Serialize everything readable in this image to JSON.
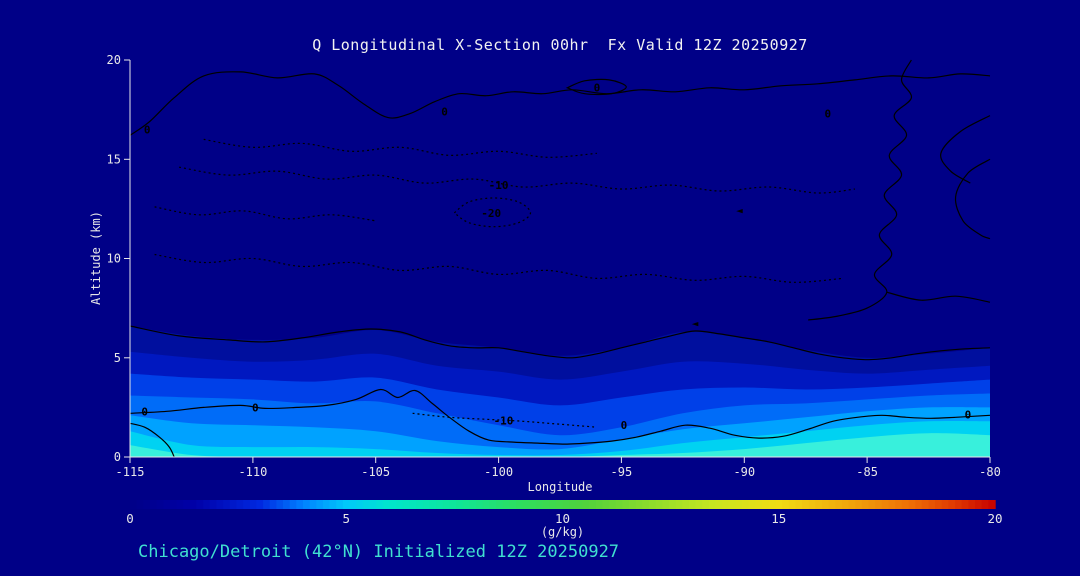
{
  "title": "Q Longitudinal X-Section 00hr  Fx Valid 12Z 20250927",
  "footer": "Chicago/Detroit (42°N) Initialized 12Z 20250927",
  "colors": {
    "background": "#000087",
    "title_text": "#f2f2f2",
    "footer_text": "#40e0d0",
    "axis": "#e8e8e8",
    "contour": "#000000"
  },
  "chart_data": {
    "type": "heatmap",
    "representation": "filled-contour-vertical-cross-section",
    "title": "Q Longitudinal X-Section 00hr  Fx Valid 12Z 20250927",
    "xlabel": "Longitude",
    "ylabel": "Altitude (km)",
    "units_label": "(g/kg)",
    "xlim": [
      -115,
      -80
    ],
    "ylim": [
      0,
      20
    ],
    "x_ticks": [
      -115,
      -110,
      -105,
      -100,
      -95,
      -90,
      -85,
      -80
    ],
    "y_ticks": [
      0,
      5,
      10,
      15,
      20
    ],
    "lons": [
      -115,
      -112.5,
      -110,
      -107.5,
      -105,
      -102.5,
      -100,
      -97.5,
      -95,
      -92.5,
      -90,
      -87.5,
      -85,
      -82.5,
      -80
    ],
    "fill_levels": [
      {
        "value": 0.5,
        "color": "#000f9e",
        "top_km": [
          6.6,
          6.1,
          5.9,
          6.0,
          6.4,
          5.8,
          5.5,
          5.1,
          5.5,
          6.3,
          6.0,
          5.4,
          5.0,
          5.2,
          5.5
        ]
      },
      {
        "value": 1,
        "color": "#0018c0",
        "top_km": [
          5.3,
          5.0,
          4.8,
          4.9,
          5.2,
          4.6,
          4.3,
          3.9,
          4.3,
          4.8,
          4.7,
          4.4,
          4.2,
          4.4,
          4.6
        ]
      },
      {
        "value": 2,
        "color": "#0040e8",
        "top_km": [
          4.2,
          4.0,
          3.9,
          3.8,
          4.0,
          3.4,
          3.0,
          2.6,
          3.0,
          3.4,
          3.5,
          3.4,
          3.5,
          3.7,
          3.9
        ]
      },
      {
        "value": 3,
        "color": "#006cf8",
        "top_km": [
          3.1,
          3.0,
          2.9,
          2.7,
          2.8,
          2.2,
          1.6,
          1.1,
          1.5,
          2.2,
          2.6,
          2.7,
          2.9,
          3.1,
          3.2
        ]
      },
      {
        "value": 4,
        "color": "#00a2ff",
        "top_km": [
          2.1,
          1.7,
          1.6,
          1.5,
          1.3,
          0.8,
          0.5,
          0.4,
          0.9,
          1.4,
          1.7,
          2.0,
          2.3,
          2.5,
          2.5
        ]
      },
      {
        "value": 5,
        "color": "#00d2f2",
        "top_km": [
          1.3,
          0.6,
          0.5,
          0.5,
          0.4,
          0.2,
          0.1,
          0.1,
          0.3,
          0.7,
          1.0,
          1.3,
          1.6,
          1.8,
          1.8
        ]
      },
      {
        "value": 6,
        "color": "#38f0dc",
        "top_km": [
          0.6,
          0.1,
          0.0,
          0.0,
          0.0,
          0.0,
          0.0,
          0.0,
          0.1,
          0.2,
          0.4,
          0.7,
          1.0,
          1.2,
          1.1
        ]
      }
    ],
    "contour_lines": [
      {
        "label": "0",
        "style": "solid",
        "points": [
          [
            -115,
            16.2
          ],
          [
            -114.2,
            16.9
          ],
          [
            -113.2,
            18.1
          ],
          [
            -112,
            19.2
          ],
          [
            -110.5,
            19.4
          ],
          [
            -109,
            19.1
          ],
          [
            -107.5,
            19.3
          ],
          [
            -106.5,
            18.7
          ],
          [
            -105.5,
            17.8
          ],
          [
            -104.5,
            17.1
          ],
          [
            -103.6,
            17.3
          ],
          [
            -102.6,
            17.9
          ],
          [
            -101.6,
            18.3
          ],
          [
            -100.5,
            18.2
          ],
          [
            -99.4,
            18.4
          ],
          [
            -98.2,
            18.3
          ],
          [
            -97,
            18.5
          ],
          [
            -95.6,
            18.3
          ],
          [
            -94.2,
            18.5
          ],
          [
            -92.8,
            18.4
          ],
          [
            -91.4,
            18.6
          ],
          [
            -90,
            18.5
          ],
          [
            -88.5,
            18.7
          ],
          [
            -87,
            18.8
          ],
          [
            -85.5,
            19.0
          ],
          [
            -84,
            19.2
          ],
          [
            -82.5,
            19.1
          ],
          [
            -81.2,
            19.3
          ],
          [
            -80,
            19.2
          ]
        ]
      },
      {
        "label": "0",
        "style": "solid",
        "closed": true,
        "points": [
          [
            -97.2,
            18.6
          ],
          [
            -96.5,
            18.95
          ],
          [
            -95.5,
            19.0
          ],
          [
            -94.8,
            18.65
          ],
          [
            -95.4,
            18.3
          ],
          [
            -96.5,
            18.3
          ],
          [
            -97.2,
            18.6
          ]
        ]
      },
      {
        "label": "0",
        "style": "solid",
        "points": [
          [
            -83.2,
            20
          ],
          [
            -83.6,
            19.0
          ],
          [
            -83.2,
            18.1
          ],
          [
            -83.9,
            17.2
          ],
          [
            -83.4,
            16.2
          ],
          [
            -84.1,
            15.2
          ],
          [
            -83.6,
            14.2
          ],
          [
            -84.3,
            13.2
          ],
          [
            -83.8,
            12.2
          ],
          [
            -84.5,
            11.2
          ],
          [
            -84.0,
            10.2
          ],
          [
            -84.7,
            9.2
          ],
          [
            -84.2,
            8.3
          ],
          [
            -85.0,
            7.5
          ],
          [
            -86.2,
            7.1
          ],
          [
            -87.4,
            6.9
          ]
        ]
      },
      {
        "label": "",
        "style": "solid",
        "points": [
          [
            -84.2,
            8.3
          ],
          [
            -82.8,
            7.9
          ],
          [
            -81.4,
            8.1
          ],
          [
            -80,
            7.8
          ]
        ]
      },
      {
        "label": "0",
        "style": "solid",
        "points": [
          [
            -80,
            15.0
          ],
          [
            -80.9,
            14.3
          ],
          [
            -81.4,
            13.1
          ],
          [
            -81.1,
            11.9
          ],
          [
            -80.4,
            11.2
          ],
          [
            -80,
            11.0
          ]
        ]
      },
      {
        "label": "",
        "style": "solid",
        "points": [
          [
            -80,
            17.2
          ],
          [
            -81.2,
            16.4
          ],
          [
            -82.0,
            15.3
          ],
          [
            -81.6,
            14.4
          ],
          [
            -80.8,
            13.8
          ]
        ]
      },
      {
        "label": "0",
        "style": "solid",
        "points": [
          [
            -115,
            6.6
          ],
          [
            -113,
            6.1
          ],
          [
            -111,
            5.9
          ],
          [
            -109.5,
            5.8
          ],
          [
            -108,
            6.0
          ],
          [
            -106.5,
            6.3
          ],
          [
            -105.2,
            6.45
          ],
          [
            -104,
            6.3
          ],
          [
            -103,
            5.9
          ],
          [
            -102,
            5.6
          ],
          [
            -101,
            5.5
          ],
          [
            -100,
            5.5
          ],
          [
            -99,
            5.3
          ],
          [
            -98,
            5.1
          ],
          [
            -97,
            5.0
          ],
          [
            -96,
            5.2
          ],
          [
            -95,
            5.5
          ],
          [
            -94,
            5.8
          ],
          [
            -93,
            6.1
          ],
          [
            -92,
            6.35
          ],
          [
            -91,
            6.2
          ],
          [
            -90,
            6.0
          ],
          [
            -89,
            5.8
          ],
          [
            -88,
            5.5
          ],
          [
            -87,
            5.2
          ],
          [
            -86,
            5.0
          ],
          [
            -85,
            4.9
          ],
          [
            -84,
            5.0
          ],
          [
            -83,
            5.2
          ],
          [
            -82,
            5.35
          ],
          [
            -81,
            5.45
          ],
          [
            -80,
            5.5
          ]
        ]
      },
      {
        "label": "0",
        "style": "solid",
        "points": [
          [
            -115,
            2.2
          ],
          [
            -113.5,
            2.3
          ],
          [
            -112,
            2.5
          ],
          [
            -110.5,
            2.6
          ],
          [
            -109.5,
            2.45
          ],
          [
            -108.2,
            2.5
          ],
          [
            -107,
            2.6
          ],
          [
            -105.8,
            2.9
          ],
          [
            -104.8,
            3.4
          ],
          [
            -104.1,
            3.0
          ],
          [
            -103.4,
            3.35
          ],
          [
            -102.7,
            2.7
          ],
          [
            -102,
            2.0
          ],
          [
            -101.2,
            1.3
          ],
          [
            -100.4,
            0.85
          ],
          [
            -99.4,
            0.75
          ],
          [
            -98.4,
            0.7
          ],
          [
            -97.4,
            0.65
          ],
          [
            -96.4,
            0.7
          ],
          [
            -95.4,
            0.8
          ],
          [
            -94.4,
            1.0
          ],
          [
            -93.4,
            1.3
          ],
          [
            -92.4,
            1.6
          ],
          [
            -91.4,
            1.45
          ],
          [
            -90.4,
            1.1
          ],
          [
            -89.4,
            0.95
          ],
          [
            -88.4,
            1.05
          ],
          [
            -87.4,
            1.4
          ],
          [
            -86.4,
            1.8
          ],
          [
            -85.4,
            2.0
          ],
          [
            -84.4,
            2.1
          ],
          [
            -83.4,
            2.0
          ],
          [
            -82.4,
            1.95
          ],
          [
            -81.4,
            2.0
          ],
          [
            -80,
            2.1
          ]
        ]
      },
      {
        "label": "",
        "style": "solid",
        "points": [
          [
            -115,
            1.7
          ],
          [
            -114.4,
            1.5
          ],
          [
            -113.8,
            1.0
          ],
          [
            -113.4,
            0.5
          ],
          [
            -113.2,
            0.0
          ]
        ]
      },
      {
        "label": "-10",
        "style": "dotted",
        "points": [
          [
            -113,
            14.6
          ],
          [
            -111,
            14.2
          ],
          [
            -109,
            14.4
          ],
          [
            -107,
            14.0
          ],
          [
            -105,
            14.2
          ],
          [
            -103,
            13.8
          ],
          [
            -101,
            14.0
          ],
          [
            -99,
            13.6
          ],
          [
            -97,
            13.8
          ],
          [
            -95,
            13.5
          ],
          [
            -93,
            13.7
          ],
          [
            -91,
            13.4
          ],
          [
            -89,
            13.6
          ],
          [
            -87,
            13.3
          ],
          [
            -85.5,
            13.5
          ]
        ]
      },
      {
        "label": "-20",
        "style": "dotted",
        "closed": true,
        "points": [
          [
            -101.8,
            12.3
          ],
          [
            -101.2,
            12.85
          ],
          [
            -100.2,
            13.05
          ],
          [
            -99.2,
            12.85
          ],
          [
            -98.7,
            12.3
          ],
          [
            -99.2,
            11.8
          ],
          [
            -100.2,
            11.6
          ],
          [
            -101.2,
            11.8
          ],
          [
            -101.8,
            12.3
          ]
        ]
      },
      {
        "label": "",
        "style": "dotted",
        "points": [
          [
            -114,
            10.2
          ],
          [
            -112,
            9.8
          ],
          [
            -110,
            10.0
          ],
          [
            -108,
            9.6
          ],
          [
            -106,
            9.8
          ],
          [
            -104,
            9.4
          ],
          [
            -102,
            9.6
          ],
          [
            -100,
            9.2
          ],
          [
            -98,
            9.4
          ],
          [
            -96,
            9.0
          ],
          [
            -94,
            9.2
          ],
          [
            -92,
            8.9
          ],
          [
            -90,
            9.1
          ],
          [
            -88,
            8.8
          ],
          [
            -86,
            9.0
          ]
        ]
      },
      {
        "label": "",
        "style": "dotted",
        "points": [
          [
            -114,
            12.6
          ],
          [
            -112.2,
            12.2
          ],
          [
            -110.4,
            12.4
          ],
          [
            -108.6,
            12.0
          ],
          [
            -106.8,
            12.2
          ],
          [
            -105,
            11.9
          ]
        ]
      },
      {
        "label": "",
        "style": "dotted",
        "points": [
          [
            -112,
            16.0
          ],
          [
            -110,
            15.6
          ],
          [
            -108,
            15.8
          ],
          [
            -106,
            15.4
          ],
          [
            -104,
            15.6
          ],
          [
            -102,
            15.2
          ],
          [
            -100,
            15.4
          ],
          [
            -98,
            15.1
          ],
          [
            -96,
            15.3
          ]
        ]
      },
      {
        "label": "-10",
        "style": "dotted",
        "points": [
          [
            -103.5,
            2.2
          ],
          [
            -102,
            2.0
          ],
          [
            -100.5,
            1.9
          ],
          [
            -99,
            1.8
          ],
          [
            -97.5,
            1.65
          ],
          [
            -96,
            1.5
          ]
        ]
      }
    ],
    "contour_labels": [
      {
        "text": "0",
        "lon": -114.3,
        "alt": 16.5
      },
      {
        "text": "0",
        "lon": -102.2,
        "alt": 17.4
      },
      {
        "text": "0",
        "lon": -96.0,
        "alt": 18.62
      },
      {
        "text": "0",
        "lon": -86.6,
        "alt": 17.3
      },
      {
        "text": "0",
        "lon": -109.9,
        "alt": 2.5
      },
      {
        "text": "-10",
        "lon": -100.0,
        "alt": 13.7
      },
      {
        "text": "-20",
        "lon": -100.3,
        "alt": 12.3
      },
      {
        "text": "-10",
        "lon": -99.8,
        "alt": 1.85
      },
      {
        "text": "0",
        "lon": -94.9,
        "alt": 1.6
      },
      {
        "text": "0",
        "lon": -80.9,
        "alt": 2.15
      },
      {
        "text": "0",
        "lon": -114.4,
        "alt": 2.3
      },
      {
        "text": "◄",
        "lon": -90.2,
        "alt": 12.45
      },
      {
        "text": "◄",
        "lon": -92.0,
        "alt": 6.75
      }
    ],
    "colorbar": {
      "min": 0,
      "max": 20,
      "ticks": [
        0,
        5,
        10,
        15,
        20
      ],
      "label": "(g/kg)",
      "stops": [
        {
          "v": 0,
          "color": "#000087"
        },
        {
          "v": 1.5,
          "color": "#0000a8"
        },
        {
          "v": 3,
          "color": "#0028e0"
        },
        {
          "v": 4,
          "color": "#0080ff"
        },
        {
          "v": 5,
          "color": "#00c8fa"
        },
        {
          "v": 6,
          "color": "#00e6cc"
        },
        {
          "v": 7.5,
          "color": "#0ee69a"
        },
        {
          "v": 9,
          "color": "#2ede5e"
        },
        {
          "v": 10.5,
          "color": "#50d23c"
        },
        {
          "v": 12,
          "color": "#8cdc2c"
        },
        {
          "v": 13.5,
          "color": "#c8e620"
        },
        {
          "v": 15,
          "color": "#f0dc14"
        },
        {
          "v": 16.5,
          "color": "#f0aa0c"
        },
        {
          "v": 18,
          "color": "#ee7006"
        },
        {
          "v": 19,
          "color": "#e03c02"
        },
        {
          "v": 20,
          "color": "#c60000"
        }
      ]
    }
  }
}
